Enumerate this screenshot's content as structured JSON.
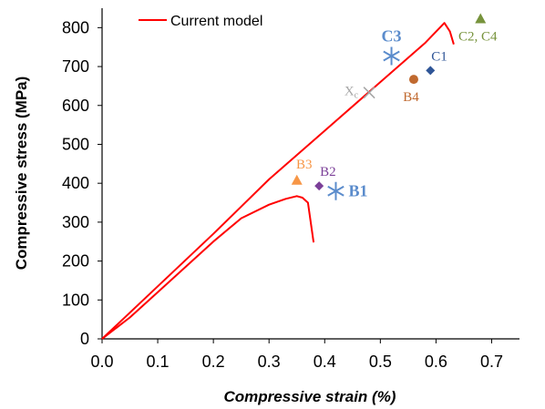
{
  "chart_data": {
    "type": "scatter",
    "xlabel": "Compressive strain (%)",
    "ylabel": "Compressive stress (MPa)",
    "xlim": [
      0,
      0.75
    ],
    "ylim": [
      0,
      850
    ],
    "x_ticks": [
      "0.0",
      "0.1",
      "0.2",
      "0.3",
      "0.4",
      "0.5",
      "0.6",
      "0.7"
    ],
    "y_ticks": [
      "0",
      "100",
      "200",
      "300",
      "400",
      "500",
      "600",
      "700",
      "800"
    ],
    "legend": {
      "label": "Current model",
      "position": "top-left"
    },
    "model_curves": [
      {
        "name": "Current model",
        "color": "#ff0000",
        "points": [
          [
            0.0,
            0
          ],
          [
            0.05,
            55
          ],
          [
            0.1,
            120
          ],
          [
            0.15,
            185
          ],
          [
            0.2,
            250
          ],
          [
            0.25,
            310
          ],
          [
            0.3,
            345
          ],
          [
            0.33,
            360
          ],
          [
            0.35,
            367
          ],
          [
            0.36,
            363
          ],
          [
            0.37,
            350
          ],
          [
            0.38,
            248
          ]
        ]
      },
      {
        "name": "Current model",
        "color": "#ff0000",
        "points": [
          [
            0.0,
            0
          ],
          [
            0.1,
            135
          ],
          [
            0.2,
            270
          ],
          [
            0.3,
            410
          ],
          [
            0.4,
            535
          ],
          [
            0.5,
            660
          ],
          [
            0.58,
            760
          ],
          [
            0.615,
            812
          ],
          [
            0.625,
            790
          ],
          [
            0.632,
            757
          ]
        ]
      }
    ],
    "points": [
      {
        "label": "B1",
        "x": 0.42,
        "y": 380,
        "marker": "asterisk",
        "color": "#5b8ccc",
        "label_style": "big",
        "label_pos": "right"
      },
      {
        "label": "B2",
        "x": 0.39,
        "y": 393,
        "marker": "diamond",
        "color": "#7b3f98",
        "label_style": "normal",
        "label_pos": "above-right"
      },
      {
        "label": "B3",
        "x": 0.35,
        "y": 408,
        "marker": "triangle",
        "color": "#f79646",
        "label_style": "normal",
        "label_pos": "above"
      },
      {
        "label": "B4",
        "x": 0.56,
        "y": 667,
        "marker": "circle",
        "color": "#c0692f",
        "label_style": "normal",
        "label_pos": "below"
      },
      {
        "label": "C1",
        "x": 0.59,
        "y": 690,
        "marker": "diamond",
        "color": "#2f5597",
        "label_style": "normal",
        "label_pos": "above-right"
      },
      {
        "label": "C3",
        "x": 0.52,
        "y": 727,
        "marker": "asterisk",
        "color": "#5b8ccc",
        "label_style": "big",
        "label_pos": "above"
      },
      {
        "label": "C2, C4",
        "x": 0.68,
        "y": 823,
        "marker": "triangle",
        "color": "#77933c",
        "label_style": "normal",
        "label_pos": "below"
      },
      {
        "label": "X",
        "sub": "c",
        "x": 0.48,
        "y": 633,
        "marker": "cross",
        "color": "#a6a6a6",
        "label_style": "xc",
        "label_pos": "left"
      }
    ]
  }
}
